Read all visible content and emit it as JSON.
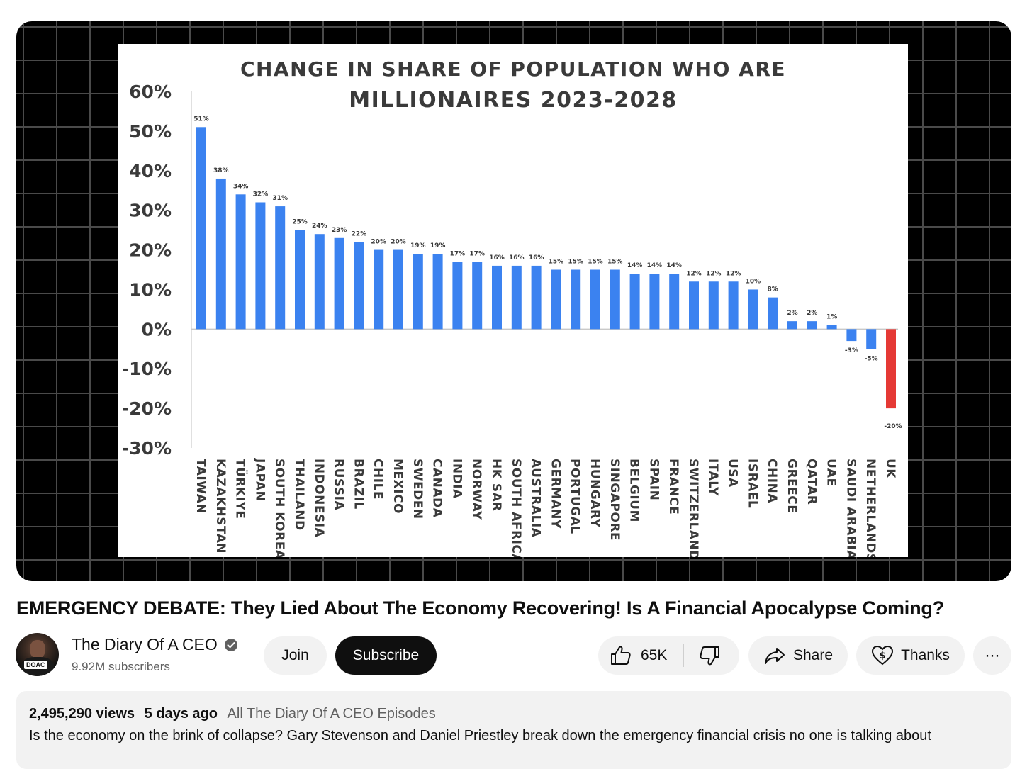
{
  "video": {
    "title": "EMERGENCY DEBATE: They Lied About The Economy Recovering! Is A Financial Apocalypse Coming?"
  },
  "channel": {
    "name": "The Diary Of A CEO",
    "subscribers": "9.92M subscribers",
    "avatar_badge": "DOAC"
  },
  "actions": {
    "join_label": "Join",
    "subscribe_label": "Subscribe",
    "like_count": "65K",
    "share_label": "Share",
    "thanks_label": "Thanks",
    "more_label": "⋯"
  },
  "description": {
    "views": "2,495,290 views",
    "date": "5 days ago",
    "playlist": "All The Diary Of A CEO Episodes",
    "text": "Is the economy on the brink of collapse? Gary Stevenson and Daniel Priestley break down the emergency financial crisis no one is talking about"
  },
  "colors": {
    "bar_positive": "#3b82f0",
    "bar_negative": "#e53935",
    "subscribe_bg": "#0f0f0f",
    "pill_bg": "#f2f2f2"
  },
  "chart_data": {
    "type": "bar",
    "title": "Change in share of population who are millionaires 2023-2028",
    "title_lines": [
      "Change in share of population who are",
      "millionaires 2023-2028"
    ],
    "xlabel": "",
    "ylabel": "",
    "ylim": [
      -30,
      60
    ],
    "yticks": [
      "60%",
      "50%",
      "40%",
      "30%",
      "20%",
      "10%",
      "0%",
      "-10%",
      "-20%",
      "-30%"
    ],
    "ytick_values": [
      60,
      50,
      40,
      30,
      20,
      10,
      0,
      -10,
      -20,
      -30
    ],
    "categories": [
      "Taiwan",
      "Kazakhstan",
      "Türkiye",
      "Japan",
      "South Korea",
      "Thailand",
      "Indonesia",
      "Russia",
      "Brazil",
      "Chile",
      "Mexico",
      "Sweden",
      "Canada",
      "India",
      "Norway",
      "HK SAR",
      "South Africa",
      "Australia",
      "Germany",
      "Portugal",
      "Hungary",
      "Singapore",
      "Belgium",
      "Spain",
      "France",
      "Switzerland",
      "Italy",
      "USA",
      "Israel",
      "China",
      "Greece",
      "Qatar",
      "UAE",
      "Saudi Arabia",
      "Netherlands",
      "UK"
    ],
    "values": [
      51,
      38,
      34,
      32,
      31,
      25,
      24,
      23,
      22,
      20,
      20,
      19,
      19,
      17,
      17,
      16,
      16,
      16,
      15,
      15,
      15,
      15,
      14,
      14,
      14,
      12,
      12,
      12,
      10,
      8,
      2,
      2,
      1,
      -3,
      -5,
      -20
    ],
    "labels": [
      "51%",
      "38%",
      "34%",
      "32%",
      "31%",
      "25%",
      "24%",
      "23%",
      "22%",
      "20%",
      "20%",
      "19%",
      "19%",
      "17%",
      "17%",
      "16%",
      "16%",
      "16%",
      "15%",
      "15%",
      "15%",
      "15%",
      "14%",
      "14%",
      "14%",
      "12%",
      "12%",
      "12%",
      "10%",
      "8%",
      "2%",
      "2%",
      "1%",
      "-3%",
      "-5%",
      "-20%"
    ],
    "highlight_index": 35,
    "grid": false
  }
}
